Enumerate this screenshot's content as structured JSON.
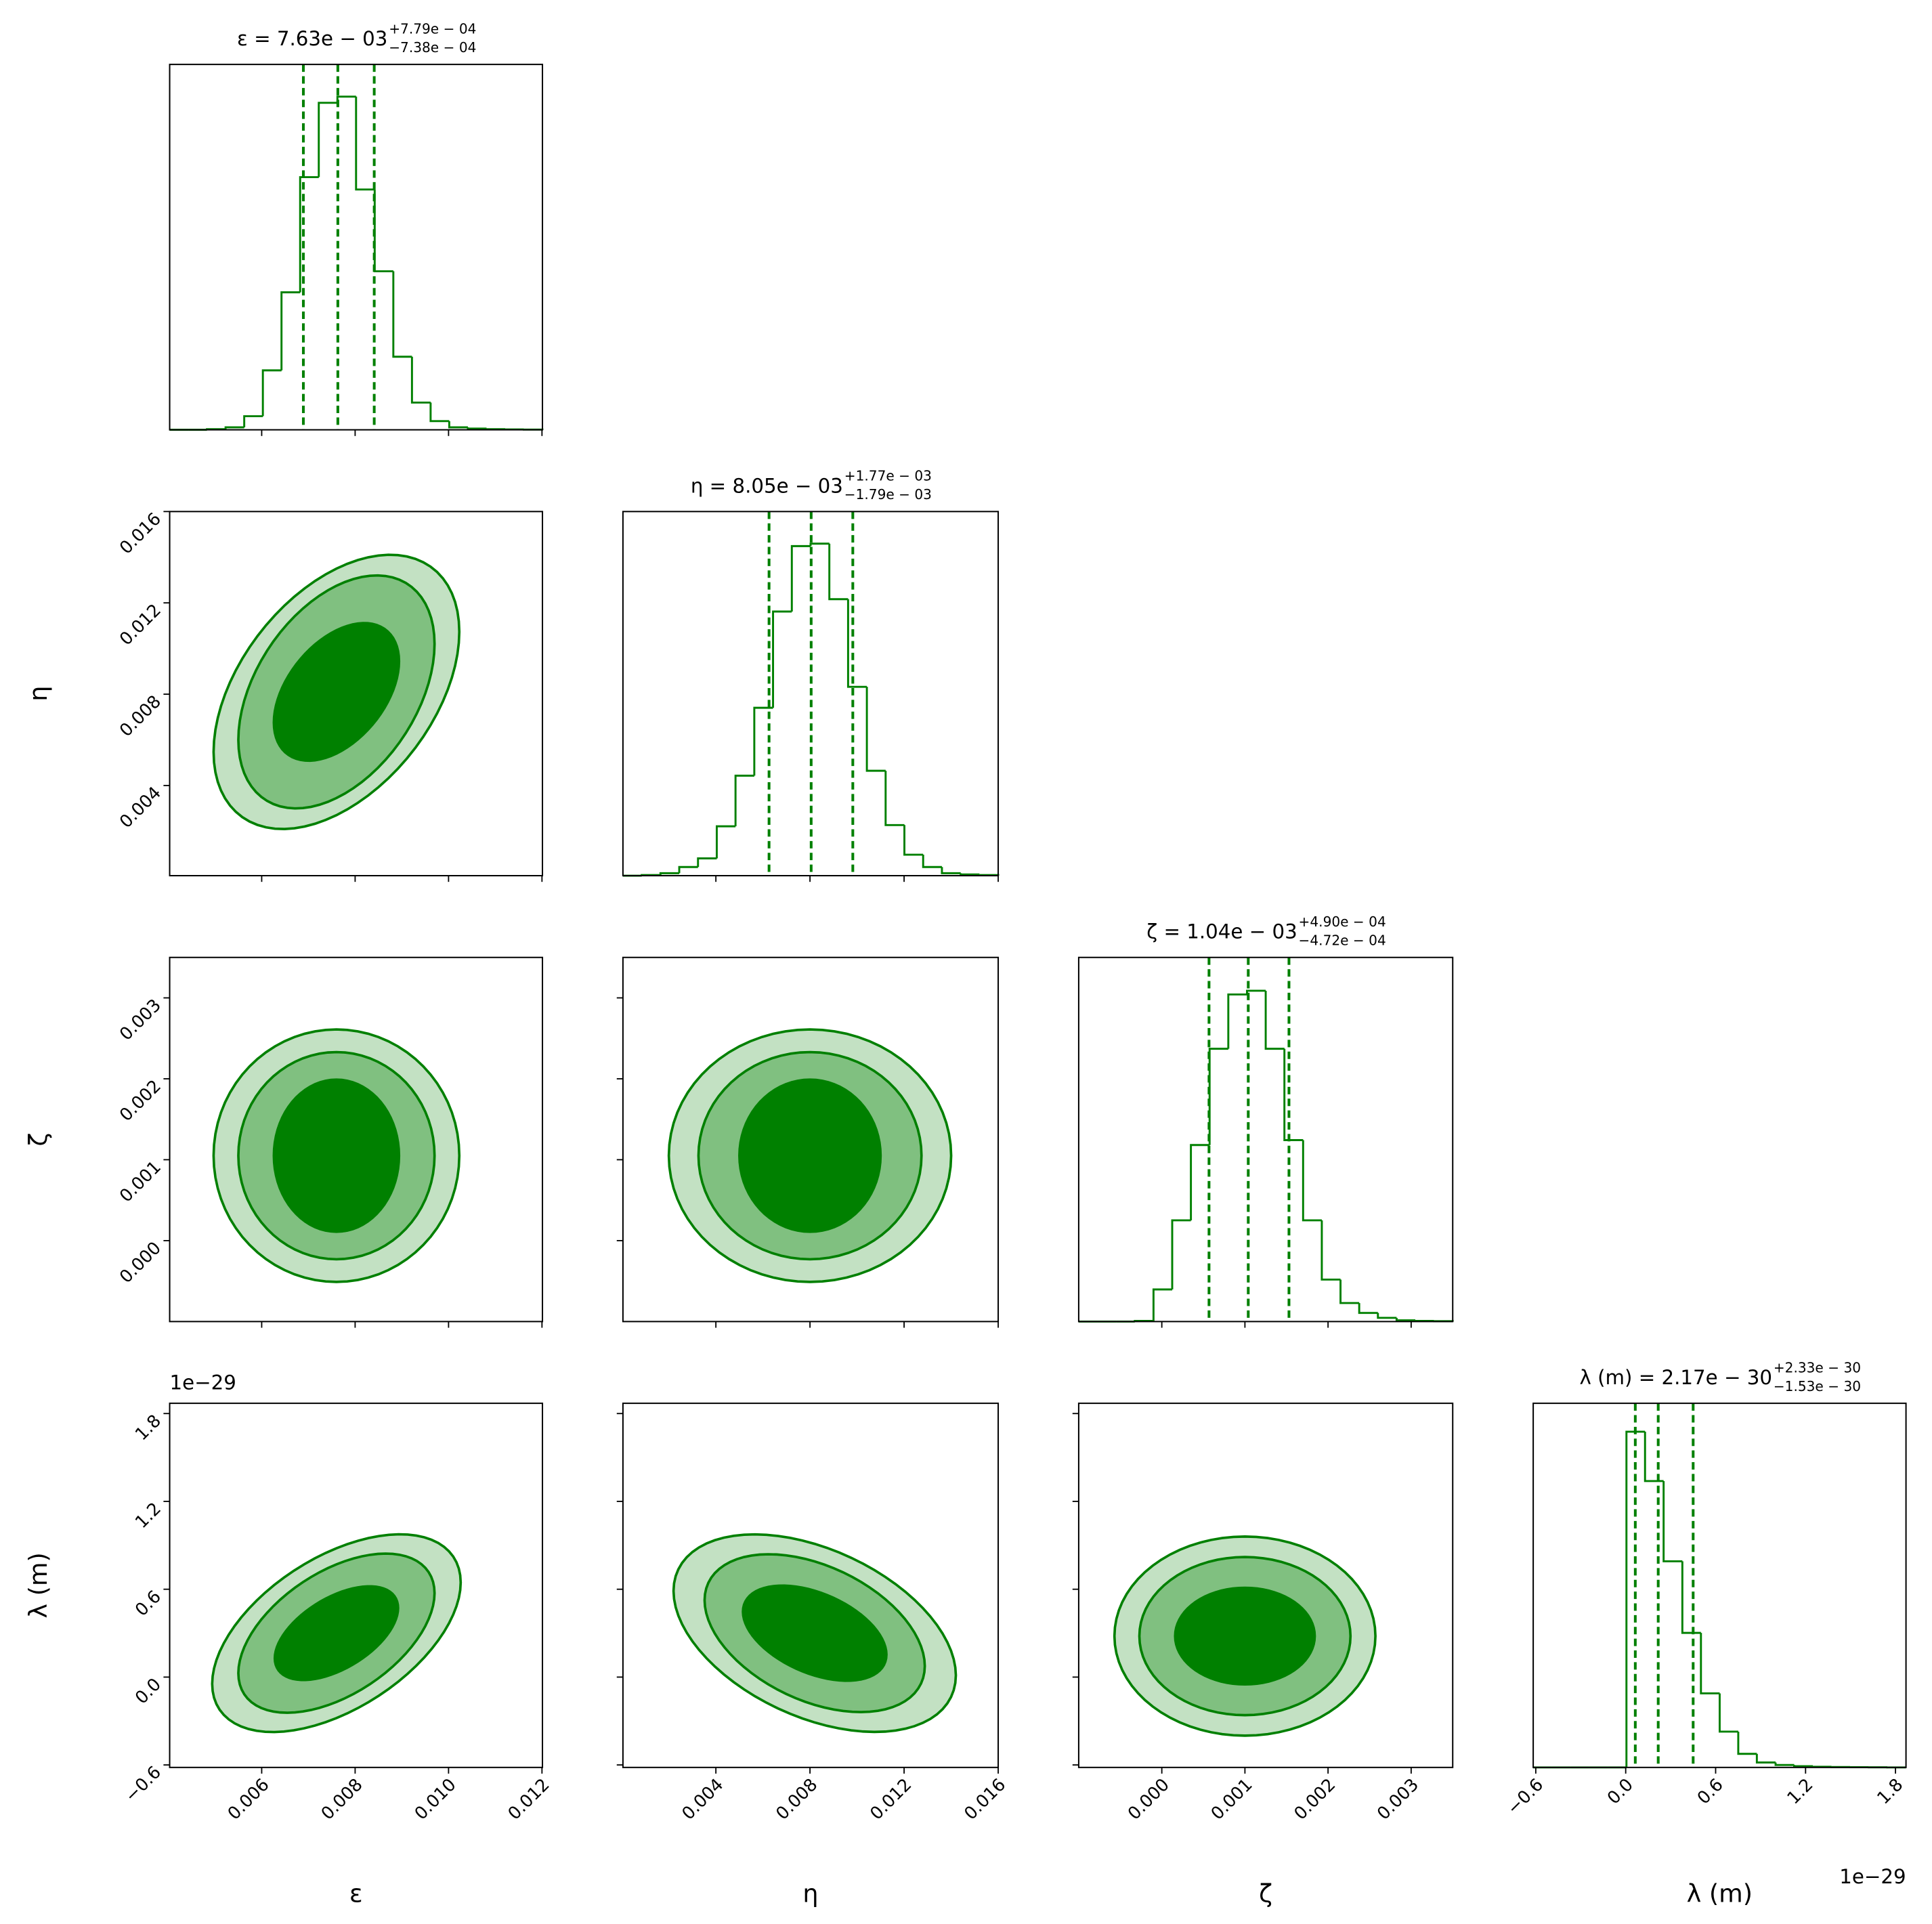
{
  "chart_data": {
    "type": "corner",
    "color": "#008000",
    "contour_colors": [
      "#c3e1c3",
      "#80c080",
      "#008000"
    ],
    "parameters": [
      {
        "label": "ε",
        "title": "ε = 7.63e − 03",
        "upper": "+7.79e − 04",
        "lower": "−7.38e − 04",
        "lim": [
          0.00403,
          0.01201
        ],
        "ticks": [
          0.006,
          0.008,
          {
            "value": 0.01,
            "label": "0.010"
          },
          0.012
        ]
      },
      {
        "label": "η",
        "title": "η = 8.05e − 03",
        "upper": "+1.77e − 03",
        "lower": "−1.79e − 03",
        "lim": [
          5e-05,
          0.016
        ],
        "ticks": [
          0.004,
          0.008,
          0.012,
          0.016
        ]
      },
      {
        "label": "ζ",
        "title": "ζ = 1.04e − 03",
        "upper": "+4.90e − 04",
        "lower": "−4.72e − 04",
        "lim": [
          -0.001,
          0.0035
        ],
        "ticks": [
          {
            "value": 0,
            "label": "0.000"
          },
          0.001,
          0.002,
          0.003
        ]
      },
      {
        "label": "λ (m)",
        "title": "λ (m) = 2.17e − 30",
        "upper": "+2.33e − 30",
        "lower": "−1.53e − 30",
        "offset": "1e−29",
        "lim": [
          -0.617,
          1.87
        ],
        "ticks": [
          {
            "value": -0.6,
            "label": "−0.6"
          },
          {
            "value": 0,
            "label": "0.0"
          },
          0.6,
          1.2,
          1.8
        ]
      }
    ],
    "histograms": [
      {
        "bins": [
          0.00403,
          0.004429,
          0.004828,
          0.005227,
          0.005626,
          0.006025,
          0.006424,
          0.006823,
          0.007222,
          0.007621,
          0.00802,
          0.008419,
          0.008818,
          0.009217,
          0.009616,
          0.010015,
          0.010414,
          0.010813,
          0.011212,
          0.011611,
          0.01201
        ],
        "counts": [
          0,
          0,
          0.5,
          2,
          11,
          48,
          111,
          204,
          264,
          269,
          194,
          128,
          59,
          22,
          7,
          2,
          1,
          0.5,
          0.3,
          0.2
        ],
        "quantiles": [
          0.006892,
          0.00763,
          0.008409
        ],
        "ylim": [
          0,
          295
        ]
      },
      {
        "bins": [
          5e-05,
          0.000848,
          0.001645,
          0.002443,
          0.00324,
          0.004038,
          0.004835,
          0.005633,
          0.00643,
          0.007228,
          0.008025,
          0.008823,
          0.00962,
          0.010418,
          0.011215,
          0.012013,
          0.01281,
          0.013608,
          0.014405,
          0.015203,
          0.016
        ],
        "counts": [
          0,
          0.5,
          2,
          7,
          14,
          40,
          81,
          136,
          214,
          267,
          269,
          224,
          153,
          85,
          41,
          17,
          7,
          2,
          1,
          0.5
        ],
        "quantiles": [
          0.00626,
          0.00805,
          0.00982
        ],
        "ylim": [
          0,
          295
        ]
      },
      {
        "bins": [
          -0.001,
          -0.000775,
          -0.00055,
          -0.000325,
          -0.0001,
          0.000125,
          0.00035,
          0.000575,
          0.0008,
          0.001025,
          0.00125,
          0.001475,
          0.0017,
          0.001925,
          0.00215,
          0.002375,
          0.0026,
          0.002825,
          0.00305,
          0.003275,
          0.0035
        ],
        "counts": [
          0,
          0,
          0,
          0.5,
          26,
          82,
          143,
          221,
          265,
          268,
          221,
          147,
          82,
          34,
          15,
          7,
          3,
          1,
          0.5,
          0.3
        ],
        "quantiles": [
          0.000568,
          0.00104,
          0.00153
        ],
        "ylim": [
          0,
          295
        ]
      },
      {
        "bins": [
          -0.617,
          -0.493,
          -0.368,
          -0.244,
          -0.12,
          0.005,
          0.129,
          0.253,
          0.378,
          0.502,
          0.627,
          0.751,
          0.875,
          1.0,
          1.124,
          1.249,
          1.373,
          1.497,
          1.622,
          1.746,
          1.87
        ],
        "counts": [
          0,
          0,
          0,
          0,
          0,
          272,
          232,
          167,
          109,
          60,
          29,
          11,
          4,
          2,
          1,
          0.5,
          0.3,
          0.2,
          0.1,
          0
        ],
        "quantiles": [
          0.064,
          0.217,
          0.45
        ],
        "ylim": [
          0,
          295
        ]
      }
    ],
    "contours": [
      {
        "center": [
          0.0076,
          0.0081
        ],
        "slope": 1.0,
        "levels": [
          [
            0.00263,
            0.0054
          ],
          [
            0.0021,
            0.00465
          ],
          [
            0.00134,
            0.0027
          ]
        ]
      },
      {
        "center": [
          0.0076,
          0.00105
        ],
        "slope": 0,
        "levels": [
          [
            0.00263,
            0.00156
          ],
          [
            0.0021,
            0.00128
          ],
          [
            0.00134,
            0.00094
          ]
        ]
      },
      {
        "center": [
          0.008,
          0.00105
        ],
        "slope": 0,
        "levels": [
          [
            0.006,
            0.00156
          ],
          [
            0.00474,
            0.00128
          ],
          [
            0.003,
            0.00094
          ]
        ]
      },
      {
        "center": [
          0.0076,
          0.3
        ],
        "slope": 130,
        "levels": [
          [
            0.00266,
            0.58
          ],
          [
            0.0021,
            0.47
          ],
          [
            0.00132,
            0.27
          ]
        ]
      },
      {
        "center": [
          0.0082,
          0.3
        ],
        "slope": -48,
        "levels": [
          [
            0.006,
            0.61
          ],
          [
            0.00468,
            0.49
          ],
          [
            0.00305,
            0.29
          ]
        ]
      },
      {
        "center": [
          0.001,
          0.28
        ],
        "slope": 0,
        "levels": [
          [
            0.00157,
            0.68
          ],
          [
            0.00127,
            0.54
          ],
          [
            0.00084,
            0.33
          ]
        ]
      }
    ]
  }
}
